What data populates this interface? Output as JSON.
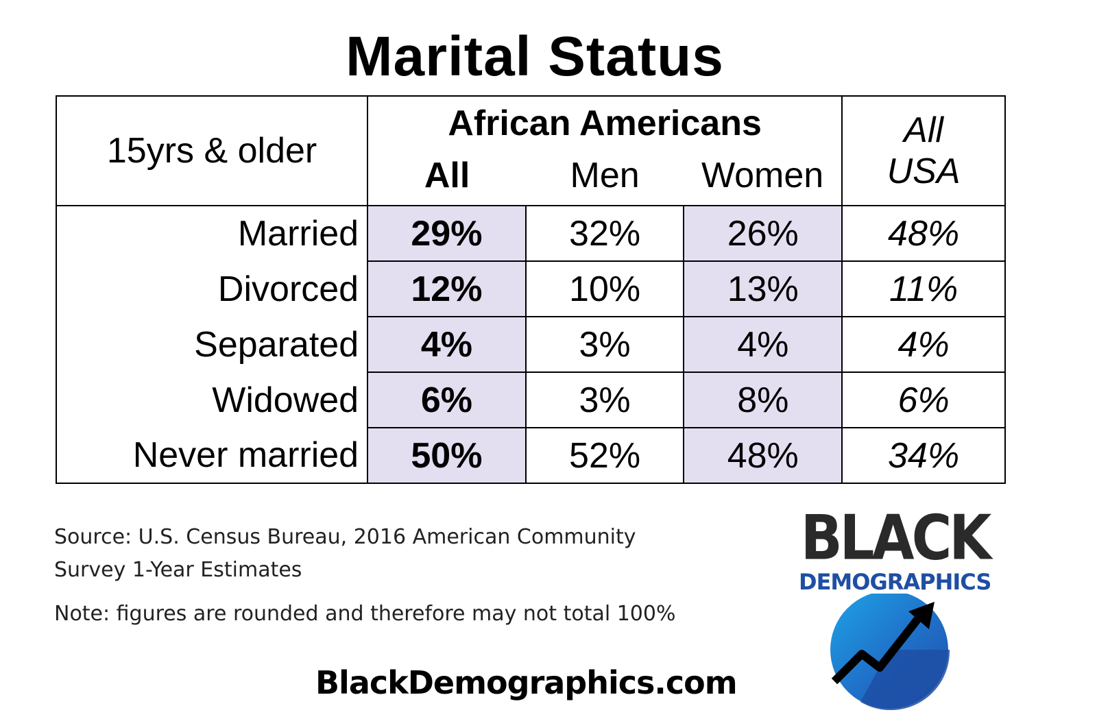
{
  "chart_data": {
    "type": "table",
    "title": "Marital Status",
    "corner_label": "15yrs & older",
    "group_label": "African Americans",
    "columns": [
      "All",
      "Men",
      "Women"
    ],
    "usa_label_line1": "All",
    "usa_label_line2": "USA",
    "rows": [
      {
        "label": "Married",
        "all": "29%",
        "men": "32%",
        "women": "26%",
        "usa": "48%"
      },
      {
        "label": "Divorced",
        "all": "12%",
        "men": "10%",
        "women": "13%",
        "usa": "11%"
      },
      {
        "label": "Separated",
        "all": "4%",
        "men": "3%",
        "women": "4%",
        "usa": "4%"
      },
      {
        "label": "Widowed",
        "all": "6%",
        "men": "3%",
        "women": "8%",
        "usa": "6%"
      },
      {
        "label": "Never married",
        "all": "50%",
        "men": "52%",
        "women": "48%",
        "usa": "34%"
      }
    ]
  },
  "footer": {
    "source_line1": "Source: U.S. Census Bureau, 2016 American Community",
    "source_line2": "Survey 1-Year Estimates",
    "note": "Note: figures are rounded and therefore may not total 100%",
    "website": "BlackDemographics.com"
  },
  "logo": {
    "word1": "BLACK",
    "word2": "DEMOGRAPHICS",
    "icon": "rising-arrow-globe-icon"
  },
  "colors": {
    "shade": "#e3dff0",
    "logo_blue_light": "#1fa3e6",
    "logo_blue_dark": "#1f4fa6",
    "logo_text_blue": "#1e4fa3"
  }
}
